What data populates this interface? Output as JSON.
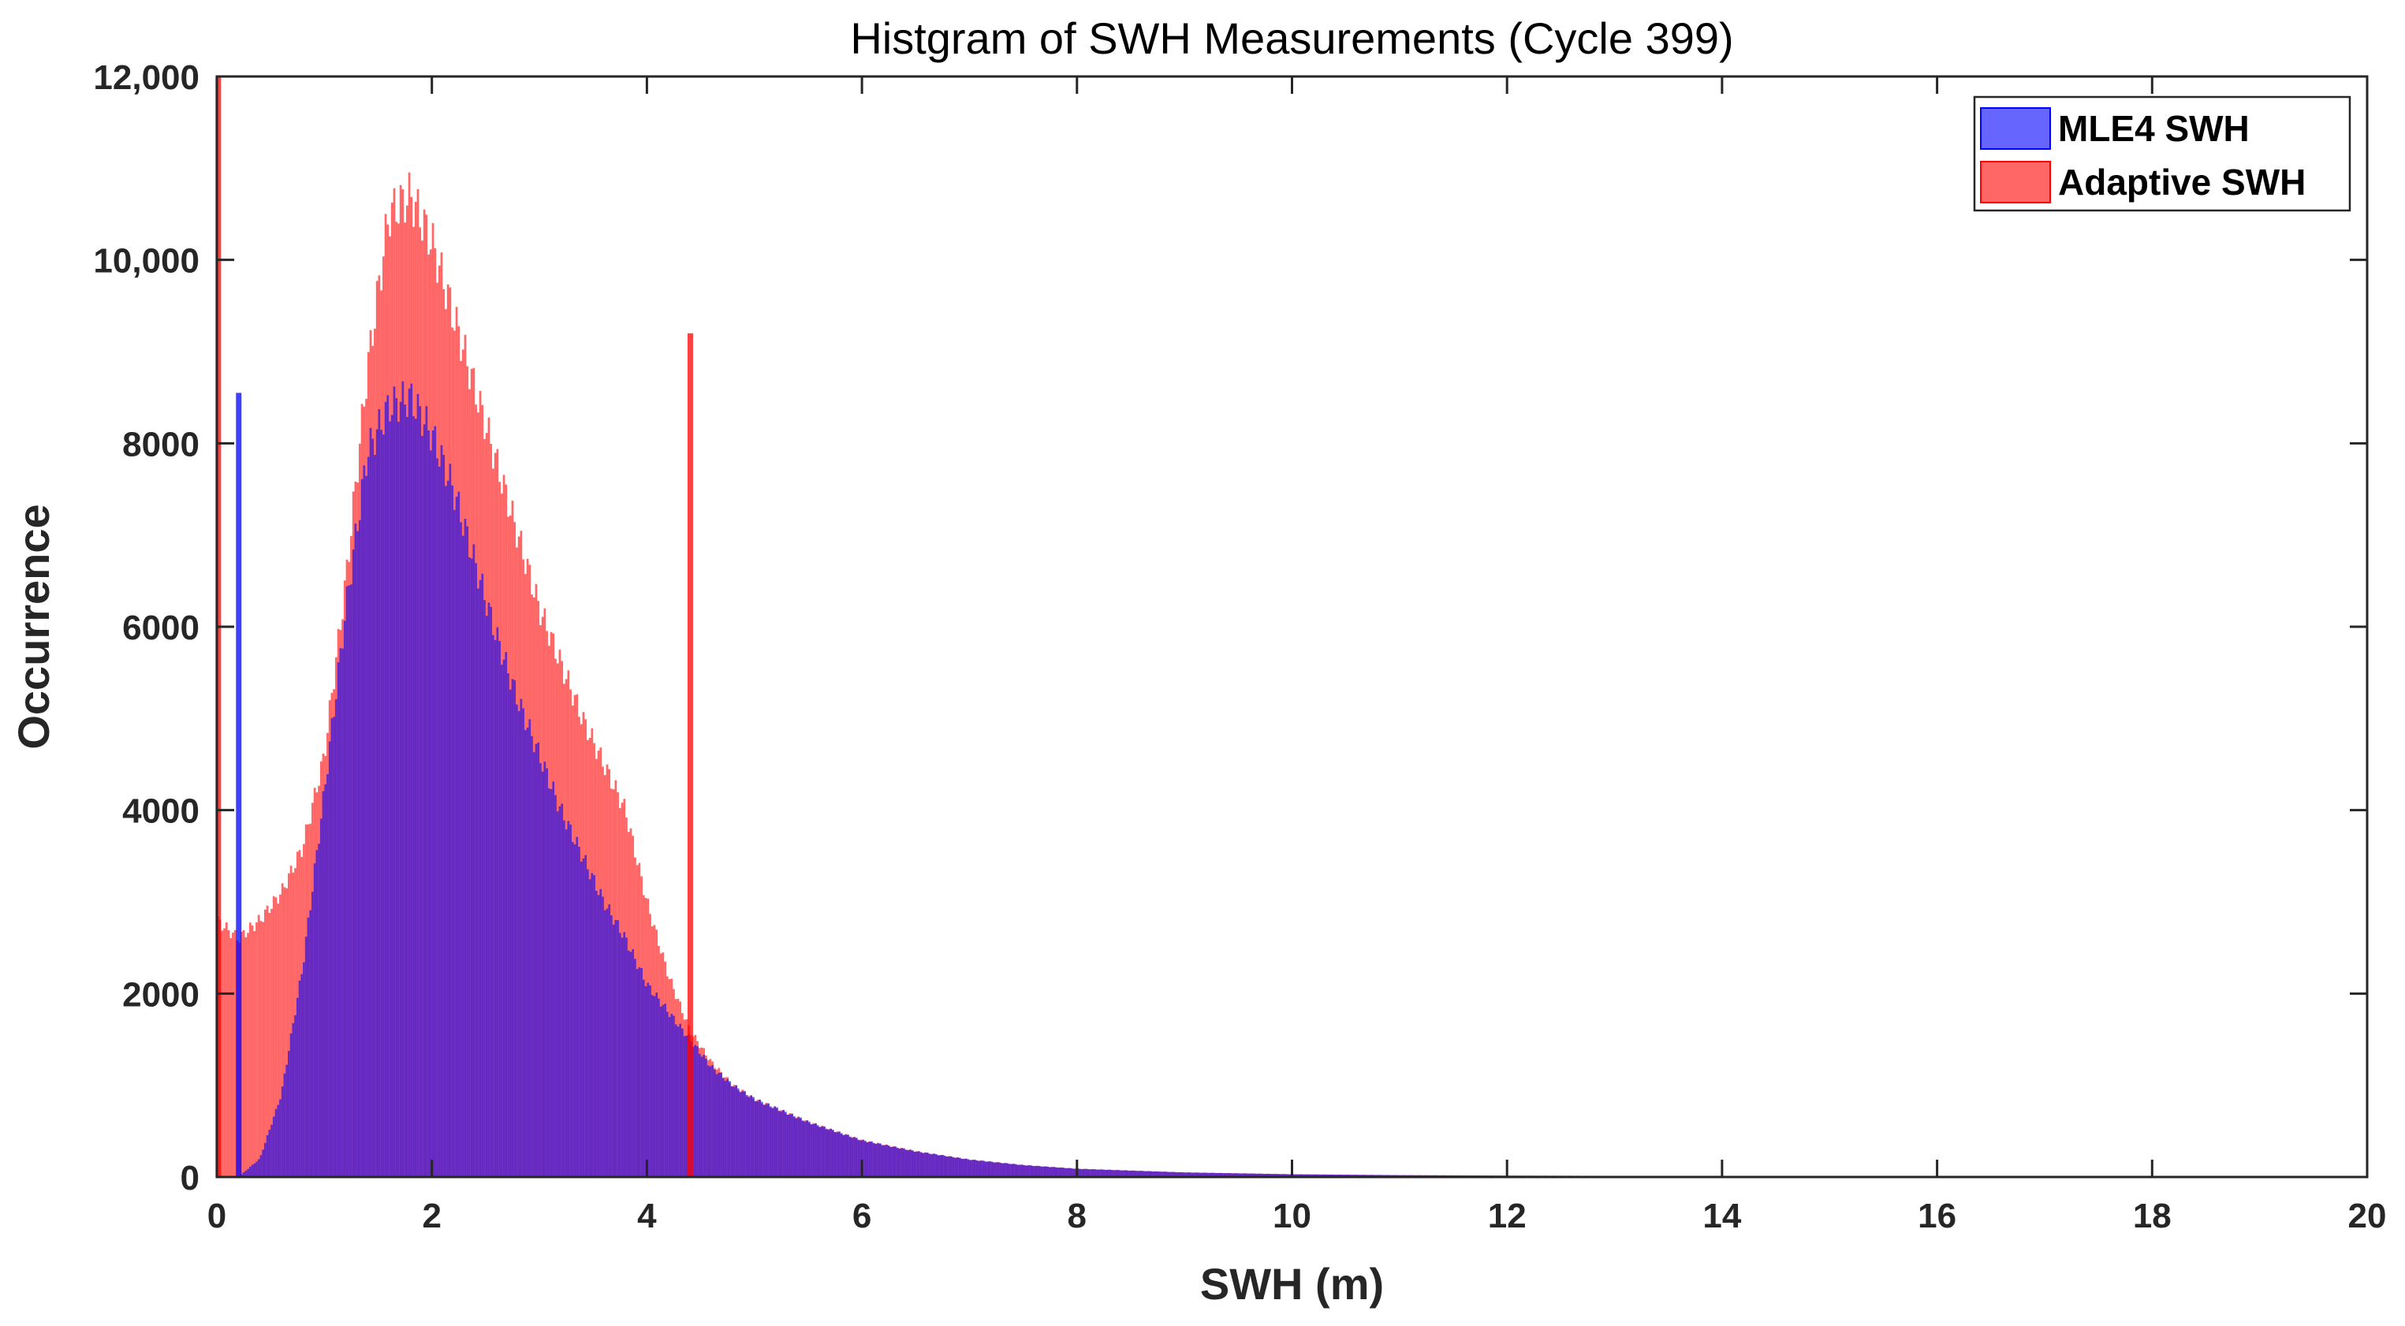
{
  "chart_data": {
    "type": "bar",
    "title": "Histgram of SWH Measurements (Cycle 399)",
    "xlabel": "SWH (m)",
    "ylabel": "Occurrence",
    "xlim": [
      0,
      20
    ],
    "ylim": [
      0,
      12000
    ],
    "x_ticks": [
      {
        "value": 0,
        "label": "0"
      },
      {
        "value": 2,
        "label": "2"
      },
      {
        "value": 4,
        "label": "4"
      },
      {
        "value": 6,
        "label": "6"
      },
      {
        "value": 8,
        "label": "8"
      },
      {
        "value": 10,
        "label": "10"
      },
      {
        "value": 12,
        "label": "12"
      },
      {
        "value": 14,
        "label": "14"
      },
      {
        "value": 16,
        "label": "16"
      },
      {
        "value": 18,
        "label": "18"
      },
      {
        "value": 20,
        "label": "20"
      }
    ],
    "y_ticks": [
      {
        "value": 0,
        "label": "0"
      },
      {
        "value": 2000,
        "label": "2000"
      },
      {
        "value": 4000,
        "label": "4000"
      },
      {
        "value": 6000,
        "label": "6000"
      },
      {
        "value": 8000,
        "label": "8000"
      },
      {
        "value": 10000,
        "label": "10,000"
      },
      {
        "value": 12000,
        "label": "12,000"
      }
    ],
    "grid": false,
    "legend_position": "top-right",
    "bin_width": 0.02,
    "series": [
      {
        "name": "MLE4 SWH",
        "color": "#0000ff",
        "alpha": 0.6,
        "x": [
          0,
          0.2,
          0.4,
          0.6,
          0.8,
          1.0,
          1.2,
          1.4,
          1.6,
          1.8,
          2.0,
          2.2,
          2.4,
          2.6,
          2.8,
          3.0,
          3.2,
          3.4,
          3.6,
          3.8,
          4.0,
          4.2,
          4.4,
          4.6,
          4.8,
          5.0,
          5.5,
          6.0,
          6.5,
          7.0,
          7.5,
          8.0,
          9.0,
          10.0,
          11.0,
          12.0,
          14.0,
          16.0,
          18.0,
          20.0
        ],
        "y": [
          0,
          0,
          200,
          900,
          2300,
          4200,
          6200,
          7900,
          8400,
          8500,
          8100,
          7500,
          6700,
          5900,
          5200,
          4600,
          4000,
          3500,
          3000,
          2600,
          2100,
          1800,
          1500,
          1200,
          1000,
          850,
          600,
          400,
          280,
          190,
          130,
          90,
          50,
          30,
          20,
          15,
          10,
          8,
          6,
          5
        ],
        "spikes": [
          {
            "x": 0.2,
            "y": 8550
          }
        ]
      },
      {
        "name": "Adaptive SWH",
        "color": "#ff0000",
        "alpha": 0.6,
        "x": [
          0,
          0.2,
          0.4,
          0.6,
          0.8,
          1.0,
          1.2,
          1.4,
          1.6,
          1.8,
          2.0,
          2.2,
          2.4,
          2.6,
          2.8,
          3.0,
          3.2,
          3.4,
          3.6,
          3.8,
          4.0,
          4.2,
          4.4,
          4.6,
          4.8,
          5.0,
          5.5,
          6.0,
          6.5,
          7.0,
          7.5,
          8.0,
          9.0,
          10.0,
          11.0,
          12.0,
          14.0,
          16.0,
          18.0,
          20.0
        ],
        "y": [
          2800,
          2600,
          2800,
          3100,
          3600,
          4600,
          6500,
          8800,
          10500,
          10700,
          10200,
          9400,
          8600,
          7800,
          7000,
          6200,
          5600,
          5000,
          4500,
          4000,
          3000,
          2200,
          1600,
          1250,
          1000,
          850,
          600,
          400,
          280,
          190,
          130,
          90,
          50,
          30,
          20,
          15,
          10,
          8,
          6,
          5
        ],
        "spikes": [
          {
            "x": 0.01,
            "y": 12000
          },
          {
            "x": 4.4,
            "y": 9200
          }
        ]
      }
    ]
  }
}
